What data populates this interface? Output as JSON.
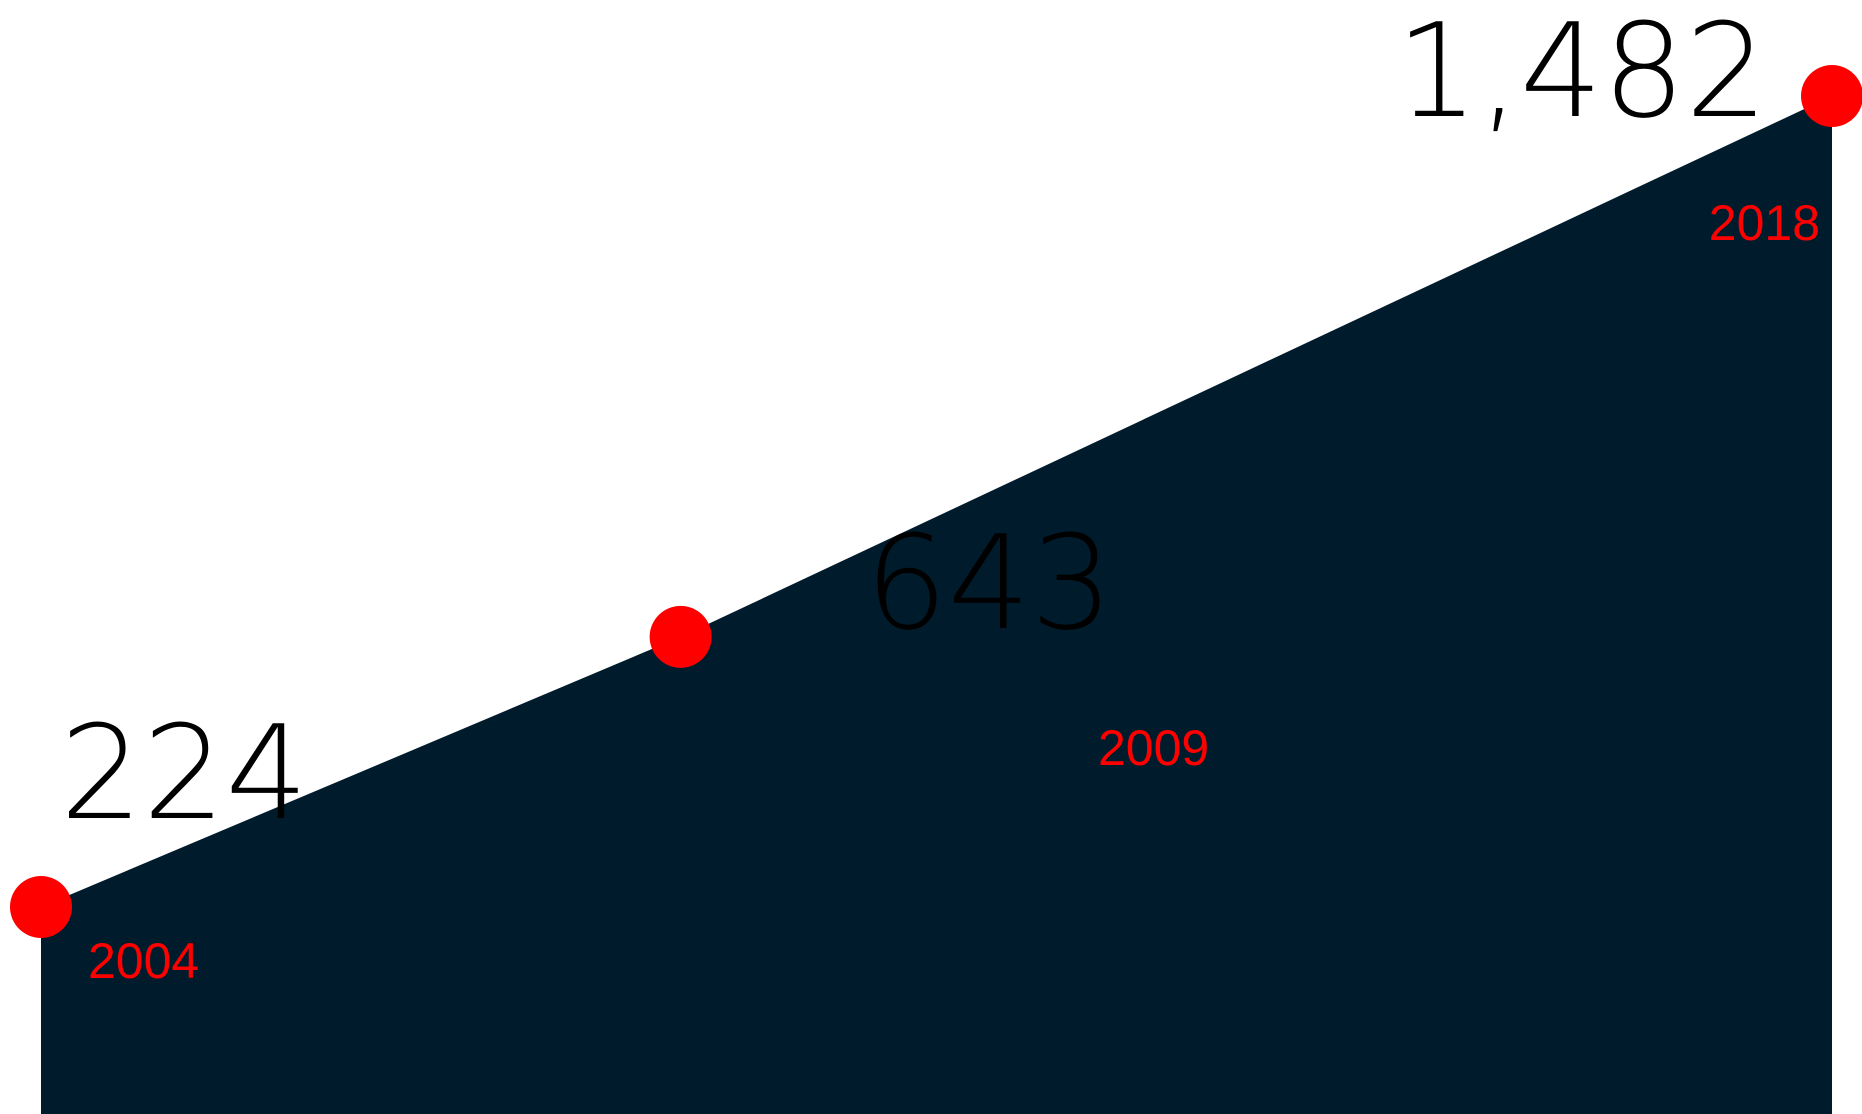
{
  "chart_data": {
    "type": "area",
    "x": [
      "2004",
      "2009",
      "2018"
    ],
    "values": [
      224,
      643,
      1482
    ],
    "value_labels": [
      "224",
      "643",
      "1,482"
    ],
    "title": "",
    "xlabel": "",
    "ylabel": "",
    "grid": false,
    "legend": "none"
  },
  "colors": {
    "area": "#001c2c",
    "marker": "#ff0000",
    "year_text": "#ff0000",
    "value_text": "#000000"
  }
}
